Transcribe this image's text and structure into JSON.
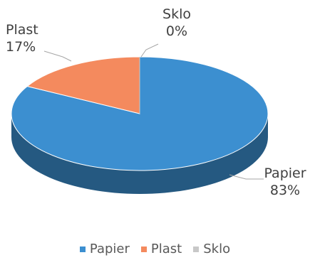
{
  "chart_data": {
    "type": "pie",
    "style": "3d",
    "categories": [
      "Papier",
      "Plast",
      "Sklo"
    ],
    "values": [
      83,
      17,
      0
    ],
    "unit": "%",
    "data_labels": [
      {
        "name": "Papier",
        "value": "83%"
      },
      {
        "name": "Plast",
        "value": "17%"
      },
      {
        "name": "Sklo",
        "value": "0%"
      }
    ],
    "colors": [
      "#3c8fd0",
      "#f48a5e",
      "#c8c8c8"
    ],
    "legend_position": "bottom"
  },
  "legend": [
    {
      "name": "Papier",
      "color": "#3c8fd0"
    },
    {
      "name": "Plast",
      "color": "#f48a5e"
    },
    {
      "name": "Sklo",
      "color": "#c8c8c8"
    }
  ]
}
